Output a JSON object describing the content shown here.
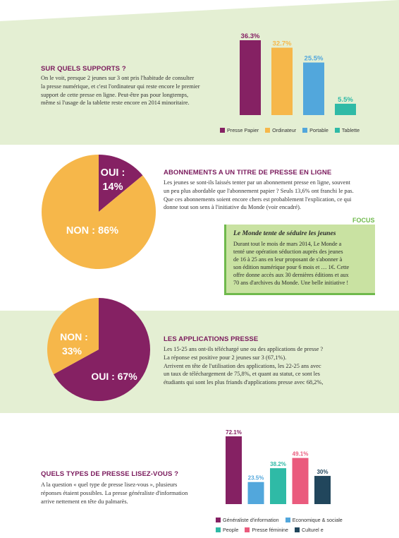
{
  "colors": {
    "purple": "#852163",
    "orange": "#f6b74a",
    "blue": "#52a7dc",
    "teal": "#2fbaa6",
    "pink": "#ea5b7d",
    "navy": "#21465c",
    "green_band": "#e4efd3",
    "heading": "#7a1a5c"
  },
  "section1": {
    "heading": "SUR QUELS SUPPORTS ?",
    "lines": [
      "On le voit, presque 2 jeunes sur 3 ont pris l'habitude de consulter",
      "la presse numérique, et c'est l'ordinateur qui reste encore le premier",
      "support de cette presse en ligne. Peut-être pas pour longtemps,",
      "même si l'usage de la tablette reste encore en 2014 minoritaire."
    ],
    "legend": [
      "Presse Papier",
      "Ordinateur",
      "Portable",
      "Tablette"
    ]
  },
  "section2": {
    "heading": "ABONNEMENTS A UN TITRE DE PRESSE EN LIGNE",
    "lines": [
      "Les jeunes se sont-ils laissés tenter par un abonnement presse en ligne, souvent",
      "un peu plus abordable que l'abonnement papier ? Seuls 13,6% ont franchi le pas.",
      "Que ces abonnements soient encore chers est probablement l'explication, ce qui",
      "donne tout son sens à l'initiative du Monde (voir encadré)."
    ],
    "focus_label": "FOCUS",
    "focus_title": "Le Monde tente de séduire les jeunes",
    "focus_lines": [
      "Durant tout le mois de mars 2014, Le Monde a",
      "tenté une opération séduction auprès des jeunes",
      "de 16 à 25 ans en leur proposant de s'abonner à",
      "son édition numérique pour 6 mois et … 1€. Cette",
      "offre donne accès aux 30 dernières éditions et aux",
      "70 ans d'archives du Monde.  Une belle initiative !"
    ],
    "pie_oui_line1": "OUI :",
    "pie_oui_line2": "14%",
    "pie_non": "NON : 86%"
  },
  "section3": {
    "heading": "LES APPLICATIONS PRESSE",
    "lines": [
      "Les 15-25 ans ont-ils téléchargé une ou des applications de presse ?",
      "La réponse est positive pour 2 jeunes sur 3 (67,1%).",
      "Arrivent en tête de l'utilisation des applications, les 22-25 ans avec",
      "un taux de téléchargement de 75,8%, et quant au statut, ce sont les",
      "étudiants qui sont les plus friands d'applications presse avec 68,2%,"
    ],
    "pie_non_line1": "NON :",
    "pie_non_line2": "33%",
    "pie_oui": "OUI : 67%"
  },
  "section4": {
    "heading": "QUELS TYPES DE PRESSE LISEZ-VOUS ?",
    "lines": [
      "A la question « quel type de presse lisez-vous », plusieurs",
      "réponses étaient possibles. La presse généraliste d'information",
      "arrive nettement en tête du palmarès."
    ],
    "legend_row1": [
      "Généraliste d'information",
      "Economique & sociale"
    ],
    "legend_row2": [
      "People",
      "Presse féminine",
      "Culturel e"
    ]
  },
  "chart_data": [
    {
      "type": "bar",
      "categories": [
        "Presse Papier",
        "Ordinateur",
        "Portable",
        "Tablette"
      ],
      "values": [
        36.3,
        32.7,
        25.5,
        5.5
      ],
      "value_labels": [
        "36.3%",
        "32.7%",
        "25.5%",
        "5.5%"
      ],
      "colors": [
        "#852163",
        "#f6b74a",
        "#52a7dc",
        "#2fbaa6"
      ],
      "title": "",
      "xlabel": "",
      "ylabel": "",
      "ylim": [
        0,
        36.3
      ],
      "grid": false,
      "legend": "bottom"
    },
    {
      "type": "pie",
      "labels": [
        "OUI",
        "NON"
      ],
      "values": [
        14,
        86
      ],
      "colors": [
        "#852163",
        "#f6b74a"
      ]
    },
    {
      "type": "pie",
      "labels": [
        "OUI",
        "NON"
      ],
      "values": [
        67,
        33
      ],
      "colors": [
        "#852163",
        "#f6b74a"
      ]
    },
    {
      "type": "bar",
      "categories": [
        "Généraliste d'information",
        "Economique & sociale",
        "People",
        "Presse féminine",
        "Culturel e"
      ],
      "values": [
        72.1,
        23.5,
        38.2,
        49.1,
        30
      ],
      "value_labels": [
        "72.1%",
        "23.5%",
        "38.2%",
        "49.1%",
        "30%"
      ],
      "colors": [
        "#852163",
        "#52a7dc",
        "#2fbaa6",
        "#ea5b7d",
        "#21465c"
      ],
      "title": "",
      "xlabel": "",
      "ylabel": "",
      "ylim": [
        0,
        72.1
      ],
      "grid": false,
      "legend": "bottom"
    }
  ]
}
